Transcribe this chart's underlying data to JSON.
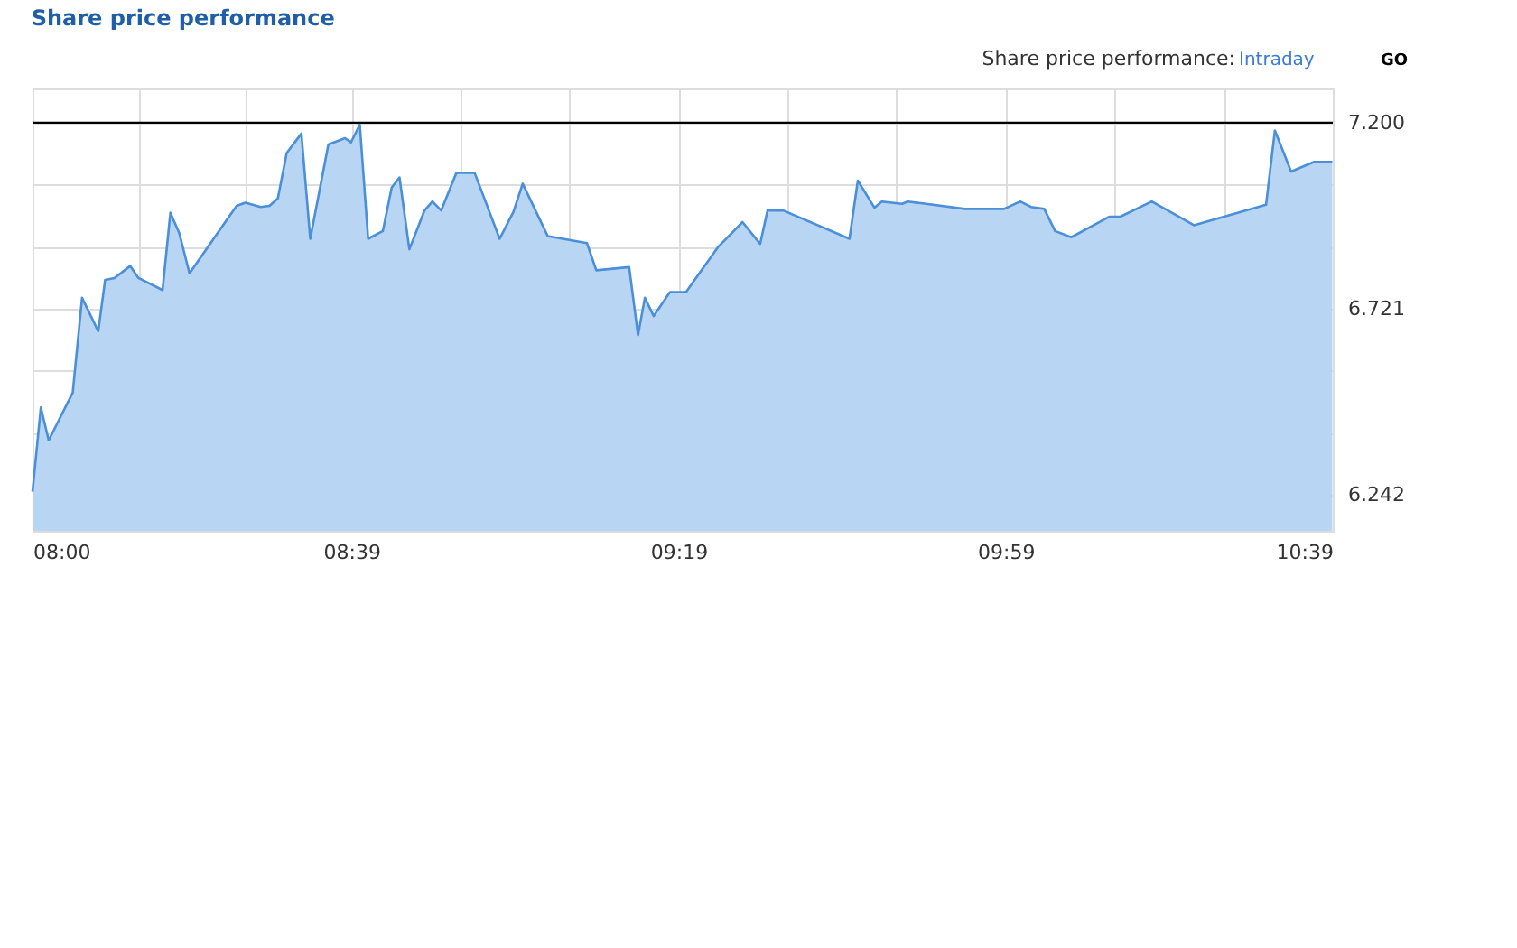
{
  "chart_data": {
    "type": "area",
    "title": "Share price performance",
    "annotations": [
      "Share price performance:",
      "Intraday",
      "GO"
    ],
    "x": [
      8.0,
      8.017,
      8.033,
      8.082,
      8.101,
      8.134,
      8.148,
      8.167,
      8.199,
      8.216,
      8.265,
      8.281,
      8.299,
      8.32,
      8.416,
      8.434,
      8.465,
      8.483,
      8.5,
      8.518,
      8.548,
      8.566,
      8.603,
      8.637,
      8.649,
      8.667,
      8.684,
      8.714,
      8.732,
      8.748,
      8.768,
      8.799,
      8.815,
      8.833,
      8.864,
      8.901,
      8.952,
      8.98,
      8.999,
      9.05,
      9.13,
      9.149,
      9.216,
      9.234,
      9.248,
      9.266,
      9.299,
      9.332,
      9.398,
      9.447,
      9.483,
      9.498,
      9.53,
      9.665,
      9.682,
      9.716,
      9.731,
      9.772,
      9.784,
      9.9,
      9.98,
      10.013,
      10.035,
      10.062,
      10.084,
      10.117,
      10.195,
      10.217,
      10.281,
      10.367,
      10.514,
      10.532,
      10.565,
      10.612,
      10.649
    ],
    "series": [
      {
        "color": "#4a8fd8",
        "values": [
          6.25,
          6.467,
          6.382,
          6.505,
          6.749,
          6.663,
          6.795,
          6.8,
          6.831,
          6.8,
          6.769,
          6.968,
          6.916,
          6.812,
          6.986,
          6.994,
          6.983,
          6.986,
          7.005,
          7.122,
          7.172,
          6.901,
          7.144,
          7.16,
          7.149,
          7.195,
          6.901,
          6.921,
          7.033,
          7.059,
          6.874,
          6.974,
          6.997,
          6.974,
          7.071,
          7.071,
          6.901,
          6.97,
          7.043,
          6.908,
          6.89,
          6.82,
          6.828,
          6.653,
          6.749,
          6.702,
          6.764,
          6.764,
          6.881,
          6.944,
          6.888,
          6.974,
          6.974,
          6.901,
          7.051,
          6.981,
          6.997,
          6.991,
          6.997,
          6.978,
          6.978,
          6.997,
          6.983,
          6.978,
          6.921,
          6.905,
          6.958,
          6.958,
          6.997,
          6.936,
          6.989,
          7.18,
          7.074,
          7.099,
          7.099
        ]
      }
    ],
    "xlim": [
      8.0,
      10.65
    ],
    "xticks": [
      {
        "value": 8.0,
        "label": "08:00"
      },
      {
        "value": 8.2167,
        "label": null
      },
      {
        "value": 8.4333,
        "label": null
      },
      {
        "value": 8.65,
        "label": "08:39"
      },
      {
        "value": 8.8722,
        "label": null
      },
      {
        "value": 9.0944,
        "label": null
      },
      {
        "value": 9.3167,
        "label": "09:19"
      },
      {
        "value": 9.5389,
        "label": null
      },
      {
        "value": 9.7611,
        "label": null
      },
      {
        "value": 9.9833,
        "label": "09:59"
      },
      {
        "value": 10.2056,
        "label": null
      },
      {
        "value": 10.4278,
        "label": null
      },
      {
        "value": 10.65,
        "label": "10:39"
      }
    ],
    "ylim": [
      6.149,
      7.288
    ],
    "yticks": [
      6.242,
      {
        "value": 6.4017,
        "label": null
      },
      {
        "value": 6.5613,
        "label": null
      },
      6.721,
      {
        "value": 6.8807,
        "label": null
      },
      {
        "value": 7.0403,
        "label": null
      },
      {
        "value": 7.2,
        "label": "7.200"
      }
    ],
    "ref_lines": [
      {
        "axis": "y",
        "value": 7.2,
        "color": "#000000"
      }
    ],
    "grid": true
  }
}
